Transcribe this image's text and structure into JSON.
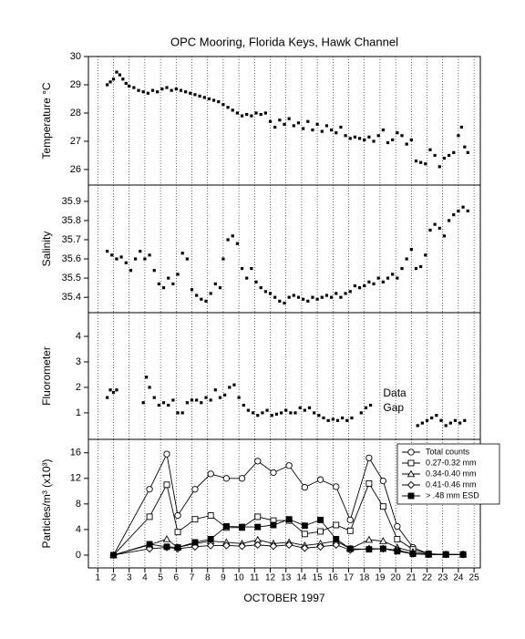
{
  "chart_data": [
    {
      "type": "scatter",
      "title": "OPC Mooring, Florida Keys, Hawk Channel",
      "y_label": "Temperature °C",
      "color": "#000000",
      "x": [
        1.6,
        1.8,
        2.0,
        2.2,
        2.4,
        2.6,
        2.8,
        3.0,
        3.3,
        3.6,
        3.9,
        4.2,
        4.5,
        4.8,
        5.1,
        5.4,
        5.7,
        6.0,
        6.3,
        6.6,
        6.9,
        7.2,
        7.5,
        7.8,
        8.1,
        8.4,
        8.7,
        9.0,
        9.3,
        9.6,
        9.9,
        10.2,
        10.5,
        10.8,
        11.1,
        11.4,
        11.7,
        12.0,
        12.3,
        12.6,
        12.9,
        13.2,
        13.5,
        13.8,
        14.1,
        14.4,
        14.7,
        15.0,
        15.3,
        15.6,
        15.9,
        16.2,
        16.5,
        16.8,
        17.1,
        17.4,
        17.7,
        18.0,
        18.3,
        18.6,
        18.9,
        19.2,
        19.5,
        19.8,
        20.1,
        20.4,
        20.7,
        21.0,
        21.3,
        21.6,
        21.9,
        22.2,
        22.5,
        22.8,
        23.1,
        23.4,
        23.7,
        24.0,
        24.2,
        24.4,
        24.6
      ],
      "values": [
        29.0,
        29.1,
        29.2,
        29.45,
        29.35,
        29.2,
        29.05,
        28.95,
        28.9,
        28.8,
        28.75,
        28.7,
        28.8,
        28.75,
        28.85,
        28.9,
        28.8,
        28.85,
        28.8,
        28.75,
        28.7,
        28.65,
        28.6,
        28.55,
        28.5,
        28.45,
        28.4,
        28.3,
        28.2,
        28.1,
        28.0,
        27.9,
        27.95,
        27.9,
        28.0,
        27.95,
        28.0,
        27.7,
        27.5,
        27.75,
        27.6,
        27.8,
        27.55,
        27.65,
        27.45,
        27.7,
        27.4,
        27.6,
        27.35,
        27.55,
        27.4,
        27.3,
        27.5,
        27.2,
        27.1,
        27.15,
        27.1,
        27.05,
        27.15,
        27.0,
        27.2,
        27.4,
        26.95,
        27.05,
        27.3,
        27.2,
        26.9,
        27.05,
        26.3,
        26.25,
        26.2,
        26.7,
        26.5,
        26.1,
        26.4,
        26.5,
        26.6,
        27.2,
        27.5,
        26.8,
        26.6
      ],
      "xlim": [
        0.4,
        25.4
      ],
      "ylim": [
        25.45,
        30
      ],
      "yticks": [
        26,
        27,
        28,
        29,
        30
      ]
    },
    {
      "type": "scatter",
      "y_label": "Salinity",
      "color": "#000000",
      "x": [
        1.6,
        1.9,
        2.2,
        2.5,
        2.8,
        3.1,
        3.4,
        3.7,
        4.0,
        4.3,
        4.6,
        4.9,
        5.2,
        5.5,
        5.8,
        6.1,
        6.4,
        6.7,
        7.0,
        7.3,
        7.6,
        7.9,
        8.2,
        8.5,
        8.8,
        9.0,
        9.3,
        9.6,
        9.9,
        10.2,
        10.5,
        10.8,
        11.1,
        11.4,
        11.7,
        12.0,
        12.3,
        12.6,
        12.9,
        13.2,
        13.5,
        13.8,
        14.1,
        14.4,
        14.7,
        15.0,
        15.3,
        15.6,
        15.9,
        16.2,
        16.5,
        16.8,
        17.1,
        17.4,
        17.7,
        18.0,
        18.3,
        18.6,
        18.9,
        19.2,
        19.5,
        19.8,
        20.1,
        20.4,
        20.7,
        21.0,
        21.3,
        21.6,
        21.9,
        22.2,
        22.5,
        22.8,
        23.1,
        23.4,
        23.7,
        24.0,
        24.3,
        24.6
      ],
      "values": [
        35.64,
        35.62,
        35.6,
        35.61,
        35.58,
        35.54,
        35.6,
        35.64,
        35.6,
        35.62,
        35.54,
        35.47,
        35.45,
        35.5,
        35.47,
        35.52,
        35.63,
        35.6,
        35.44,
        35.41,
        35.39,
        35.38,
        35.42,
        35.47,
        35.45,
        35.6,
        35.7,
        35.72,
        35.68,
        35.55,
        35.5,
        35.55,
        35.48,
        35.45,
        35.43,
        35.42,
        35.4,
        35.38,
        35.37,
        35.4,
        35.41,
        35.4,
        35.39,
        35.38,
        35.4,
        35.39,
        35.4,
        35.41,
        35.4,
        35.42,
        35.4,
        35.42,
        35.43,
        35.46,
        35.45,
        35.46,
        35.48,
        35.47,
        35.5,
        35.48,
        35.5,
        35.52,
        35.5,
        35.55,
        35.6,
        35.65,
        35.55,
        35.56,
        35.62,
        35.75,
        35.78,
        35.76,
        35.72,
        35.8,
        35.83,
        35.85,
        35.87,
        35.85
      ],
      "xlim": [
        0.4,
        25.4
      ],
      "ylim": [
        35.32,
        35.985
      ],
      "yticks": [
        35.4,
        35.5,
        35.6,
        35.7,
        35.8,
        35.9
      ]
    },
    {
      "type": "scatter",
      "y_label": "Fluorometer",
      "color": "#000000",
      "annotation": [
        "Data",
        "Gap"
      ],
      "x": [
        1.6,
        1.8,
        2.0,
        2.2,
        3.9,
        4.1,
        4.3,
        4.6,
        4.9,
        5.2,
        5.5,
        5.8,
        6.1,
        6.4,
        6.7,
        7.0,
        7.3,
        7.6,
        7.9,
        8.2,
        8.5,
        8.8,
        9.1,
        9.4,
        9.7,
        10.0,
        10.3,
        10.6,
        10.9,
        11.2,
        11.5,
        11.8,
        12.1,
        12.4,
        12.7,
        13.0,
        13.3,
        13.6,
        13.9,
        14.2,
        14.5,
        14.8,
        15.1,
        15.4,
        15.7,
        16.0,
        16.3,
        16.6,
        16.9,
        17.2,
        17.8,
        18.1,
        18.4,
        21.4,
        21.7,
        22.0,
        22.3,
        22.6,
        22.9,
        23.2,
        23.5,
        23.8,
        24.1,
        24.4
      ],
      "values": [
        1.6,
        1.9,
        1.8,
        1.9,
        1.4,
        2.4,
        2.0,
        1.6,
        1.3,
        1.4,
        1.3,
        1.5,
        1.0,
        1.0,
        1.4,
        1.5,
        1.5,
        1.4,
        1.6,
        1.5,
        1.9,
        1.6,
        1.7,
        2.0,
        2.1,
        1.6,
        1.3,
        1.1,
        1.0,
        0.9,
        1.0,
        1.1,
        0.9,
        0.95,
        1.0,
        1.1,
        1.0,
        1.0,
        1.2,
        1.1,
        1.2,
        1.0,
        0.9,
        0.8,
        0.7,
        0.75,
        0.7,
        0.8,
        0.7,
        0.8,
        1.0,
        1.2,
        1.3,
        0.5,
        0.6,
        0.7,
        0.8,
        0.9,
        0.7,
        0.5,
        0.6,
        0.7,
        0.6,
        0.7
      ],
      "xlim": [
        0.4,
        25.4
      ],
      "ylim": [
        -0.04,
        4.93
      ],
      "yticks": [
        1,
        2,
        3,
        4
      ]
    },
    {
      "type": "line",
      "y_label": "Particles/m³ (x10³)",
      "x_label": "OCTOBER 1997",
      "legend": "upper right",
      "x": [
        2,
        4.3,
        5.4,
        6.1,
        7.2,
        8.2,
        9.2,
        10.2,
        11.2,
        12.2,
        13.2,
        14.2,
        15.2,
        16.2,
        17.1,
        18.3,
        19.2,
        20.1,
        21.1,
        22.1,
        23.2,
        24.3
      ],
      "series": [
        {
          "name": "Total counts",
          "color": "#000000",
          "marker": "circle",
          "filled": false,
          "values": [
            0,
            10.3,
            15.8,
            6.2,
            10.3,
            12.7,
            12,
            12,
            14.7,
            12.9,
            14,
            10.6,
            11.8,
            10.7,
            5.5,
            15.2,
            11.6,
            4.5,
            1.2,
            0.2,
            0.1,
            0.1
          ]
        },
        {
          "name": "0.27-0.32 mm",
          "color": "#000000",
          "marker": "square",
          "filled": false,
          "values": [
            0,
            6,
            11,
            3.6,
            5.6,
            6.2,
            4.3,
            4.3,
            6.0,
            5.4,
            5.4,
            3.3,
            3.7,
            4.7,
            3.8,
            11.2,
            7.6,
            2.5,
            0.9,
            0.2,
            0.1,
            0.1
          ]
        },
        {
          "name": "0.34-0.40 mm",
          "color": "#000000",
          "marker": "triangle",
          "filled": false,
          "values": [
            0,
            1.6,
            2.5,
            1.2,
            1.8,
            2.2,
            2.0,
            1.8,
            2.4,
            1.8,
            2.0,
            1.5,
            1.8,
            2.2,
            1.0,
            2.4,
            2.2,
            1.2,
            0.5,
            0.1,
            0.1,
            0.1
          ]
        },
        {
          "name": "0.41-0.46 mm",
          "color": "#000000",
          "marker": "diamond",
          "filled": false,
          "values": [
            0,
            1.0,
            1.2,
            1.0,
            1.3,
            1.5,
            1.5,
            1.4,
            1.6,
            1.4,
            1.6,
            1.1,
            1.3,
            1.6,
            0.8,
            1.0,
            1.0,
            0.8,
            0.2,
            0.1,
            0.1,
            0.1
          ]
        },
        {
          "name": "> .48 mm ESD",
          "color": "#000000",
          "marker": "square",
          "filled": true,
          "values": [
            0,
            1.7,
            1.3,
            1.2,
            2.0,
            2.5,
            4.5,
            4.4,
            4.4,
            4.7,
            5.6,
            4.6,
            5.5,
            2.5,
            1.0,
            0.9,
            1.0,
            0.6,
            0.2,
            0.1,
            0.1,
            0.1
          ]
        }
      ],
      "xlim": [
        0.4,
        25.4
      ],
      "ylim": [
        -2,
        18.1
      ],
      "yticks": [
        0,
        4,
        8,
        12,
        16
      ],
      "xticks": [
        1,
        2,
        3,
        4,
        5,
        6,
        7,
        8,
        9,
        10,
        11,
        12,
        13,
        14,
        15,
        16,
        17,
        18,
        19,
        20,
        21,
        22,
        23,
        24,
        25
      ]
    }
  ]
}
